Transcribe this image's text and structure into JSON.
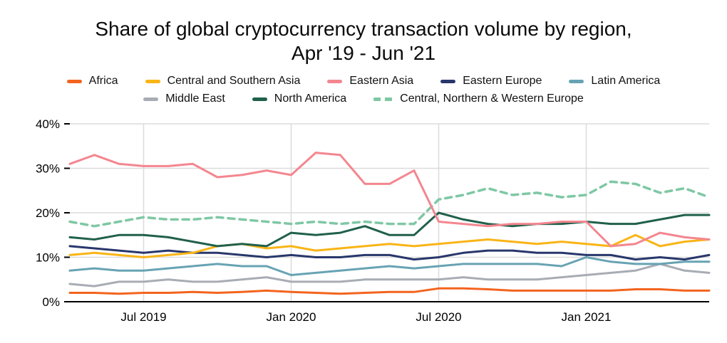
{
  "title": {
    "line1": "Share of global cryptocurrency transaction volume by region,",
    "line2": "Apr '19 - Jun '21"
  },
  "chart_data": {
    "type": "line",
    "title": "Share of global cryptocurrency transaction volume by region, Apr '19 - Jun '21",
    "xlabel": "",
    "ylabel": "",
    "ylim": [
      0,
      40
    ],
    "grid": true,
    "legend_position": "top",
    "x": [
      "Apr '19",
      "May '19",
      "Jun '19",
      "Jul '19",
      "Aug '19",
      "Sep '19",
      "Oct '19",
      "Nov '19",
      "Dec '19",
      "Jan '20",
      "Feb '20",
      "Mar '20",
      "Apr '20",
      "May '20",
      "Jun '20",
      "Jul '20",
      "Aug '20",
      "Sep '20",
      "Oct '20",
      "Nov '20",
      "Dec '20",
      "Jan '21",
      "Feb '21",
      "Mar '21",
      "Apr '21",
      "May '21",
      "Jun '21"
    ],
    "xticks": {
      "labels": [
        "Jul 2019",
        "Jan 2020",
        "Jul 2020",
        "Jan 2021"
      ],
      "indices": [
        3,
        9,
        15,
        21
      ]
    },
    "yticks": {
      "labels": [
        "0%",
        "10%",
        "20%",
        "30%",
        "40%"
      ],
      "values": [
        0,
        10,
        20,
        30,
        40
      ]
    },
    "style": {
      "grid_color": "#dbdbdb",
      "axis_color": "#000000",
      "text_color": "#000000"
    },
    "series": [
      {
        "name": "Africa",
        "color": "#F3641E",
        "dashed": false,
        "values": [
          2,
          2,
          1.8,
          2,
          2,
          2.2,
          2,
          2.2,
          2.5,
          2.2,
          2,
          1.8,
          2,
          2.2,
          2.2,
          3,
          3,
          2.8,
          2.5,
          2.5,
          2.5,
          2.5,
          2.5,
          2.8,
          2.8,
          2.5,
          2.5
        ]
      },
      {
        "name": "Central and Southern Asia",
        "color": "#F9B416",
        "dashed": false,
        "values": [
          10.5,
          11,
          10.5,
          10,
          10.5,
          11,
          12.5,
          13,
          12,
          12.5,
          11.5,
          12,
          12.5,
          13,
          12.5,
          13,
          13.5,
          14,
          13.5,
          13,
          13.5,
          13,
          12.5,
          15,
          12.5,
          13.5,
          14
        ]
      },
      {
        "name": "Eastern Asia",
        "color": "#F4868F",
        "dashed": false,
        "values": [
          31,
          33,
          31,
          30.5,
          30.5,
          31,
          28,
          28.5,
          29.5,
          28.5,
          33.5,
          33,
          26.5,
          26.5,
          29.5,
          18,
          17.5,
          17,
          17.5,
          17.5,
          18,
          18,
          12.5,
          13,
          15.5,
          14.5,
          14
        ]
      },
      {
        "name": "Eastern Europe",
        "color": "#28376B",
        "dashed": false,
        "values": [
          12.5,
          12,
          11.5,
          11,
          11.5,
          11,
          11,
          10.5,
          10,
          10.5,
          10,
          10,
          10.5,
          10.5,
          9.5,
          10,
          11,
          11.5,
          11.5,
          11,
          11,
          10.5,
          10.5,
          9.5,
          10,
          9.5,
          10.5
        ]
      },
      {
        "name": "Latin America",
        "color": "#67A3B3",
        "dashed": false,
        "values": [
          7,
          7.5,
          7,
          7,
          7.5,
          8,
          8.5,
          8,
          8,
          6,
          6.5,
          7,
          7.5,
          8,
          7.5,
          8,
          8.5,
          8.5,
          8.5,
          8.5,
          8,
          10,
          9,
          8.5,
          8.5,
          9,
          9
        ]
      },
      {
        "name": "Middle East",
        "color": "#A8ACB4",
        "dashed": false,
        "values": [
          4,
          3.5,
          4.5,
          4.5,
          5,
          4.5,
          4.5,
          5,
          5.5,
          4.5,
          4.5,
          4.5,
          5,
          5,
          5,
          5,
          5.5,
          5,
          5,
          5,
          5.5,
          6,
          6.5,
          7,
          8.5,
          7,
          6.5
        ]
      },
      {
        "name": "North America",
        "color": "#20604C",
        "dashed": false,
        "values": [
          14.5,
          14,
          15,
          15,
          14.5,
          13.5,
          12.5,
          13,
          12.5,
          15.5,
          15,
          15.5,
          17,
          15,
          15,
          20,
          18.5,
          17.5,
          17,
          17.5,
          17.5,
          18,
          17.5,
          17.5,
          18.5,
          19.5,
          19.5
        ]
      },
      {
        "name": "Central, Northern & Western Europe",
        "color": "#7EC8A4",
        "dashed": true,
        "values": [
          18,
          17,
          18,
          19,
          18.5,
          18.5,
          19,
          18.5,
          18,
          17.5,
          18,
          17.5,
          18,
          17.5,
          17.5,
          23,
          24,
          25.5,
          24,
          24.5,
          23.5,
          24,
          27,
          26.5,
          24.5,
          25.5,
          23.5
        ]
      }
    ]
  }
}
